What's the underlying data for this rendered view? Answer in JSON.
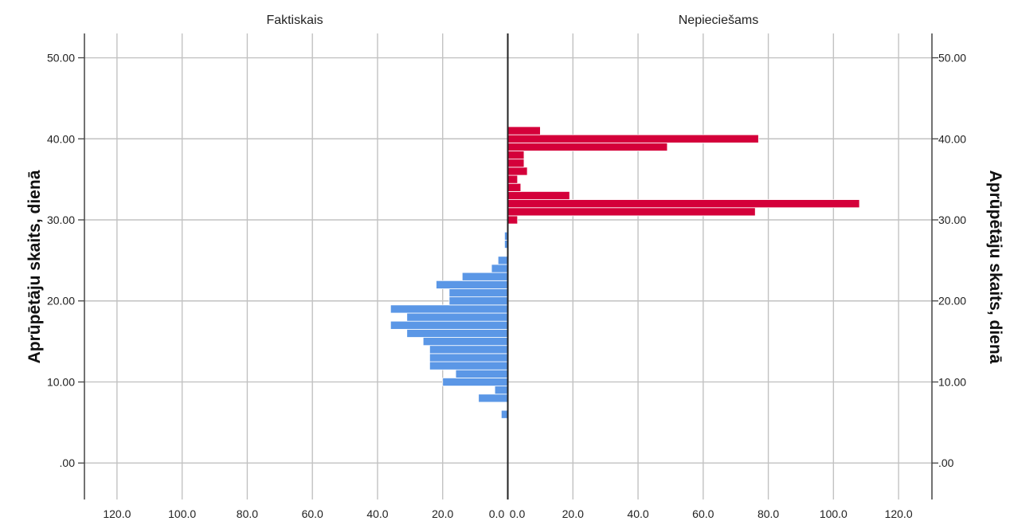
{
  "chart_data": {
    "type": "bar",
    "subtype": "population-pyramid-histogram",
    "panels": [
      "Faktiskais",
      "Nepieciešams"
    ],
    "ylabel": "Aprūpētāju skaits, dienā",
    "xlabel": "",
    "y_range": [
      -4.5,
      53.0
    ],
    "x_range": [
      0,
      130
    ],
    "bin_width": 1,
    "y_ticks": [
      ".00",
      "10.00",
      "20.00",
      "30.00",
      "40.00",
      "50.00"
    ],
    "y_tick_values": [
      0,
      10,
      20,
      30,
      40,
      50
    ],
    "x_ticks_left": [
      "120.0",
      "100.0",
      "80.0",
      "60.0",
      "40.0",
      "20.0",
      "0.0"
    ],
    "x_ticks_right": [
      "0.0",
      "20.0",
      "40.0",
      "60.0",
      "80.0",
      "100.0",
      "120.0"
    ],
    "x_tick_values_left": [
      120,
      100,
      80,
      60,
      40,
      20,
      0
    ],
    "x_tick_values_right": [
      0,
      20,
      40,
      60,
      80,
      100,
      120
    ],
    "grid": true,
    "colors": {
      "faktiskais": "#5b97e6",
      "nepieciesams": "#d4003a",
      "grid": "#c2c2c2",
      "axis": "#444444",
      "center_line": "#222222"
    },
    "series": [
      {
        "name": "Faktiskais",
        "side": "left",
        "bins": [
          {
            "y": 6,
            "count": 2
          },
          {
            "y": 8,
            "count": 9
          },
          {
            "y": 9,
            "count": 4
          },
          {
            "y": 10,
            "count": 20
          },
          {
            "y": 11,
            "count": 16
          },
          {
            "y": 12,
            "count": 24
          },
          {
            "y": 13,
            "count": 24
          },
          {
            "y": 14,
            "count": 24
          },
          {
            "y": 15,
            "count": 26
          },
          {
            "y": 16,
            "count": 31
          },
          {
            "y": 17,
            "count": 36
          },
          {
            "y": 18,
            "count": 31
          },
          {
            "y": 19,
            "count": 36
          },
          {
            "y": 20,
            "count": 18
          },
          {
            "y": 21,
            "count": 18
          },
          {
            "y": 22,
            "count": 22
          },
          {
            "y": 23,
            "count": 14
          },
          {
            "y": 24,
            "count": 5
          },
          {
            "y": 25,
            "count": 3
          },
          {
            "y": 27,
            "count": 1
          },
          {
            "y": 28,
            "count": 1
          }
        ]
      },
      {
        "name": "Nepieciešams",
        "side": "right",
        "bins": [
          {
            "y": 30,
            "count": 3
          },
          {
            "y": 31,
            "count": 76
          },
          {
            "y": 32,
            "count": 108
          },
          {
            "y": 33,
            "count": 19
          },
          {
            "y": 34,
            "count": 4
          },
          {
            "y": 35,
            "count": 3
          },
          {
            "y": 36,
            "count": 6
          },
          {
            "y": 37,
            "count": 5
          },
          {
            "y": 38,
            "count": 5
          },
          {
            "y": 39,
            "count": 49
          },
          {
            "y": 40,
            "count": 77
          },
          {
            "y": 41,
            "count": 10
          }
        ]
      }
    ]
  }
}
